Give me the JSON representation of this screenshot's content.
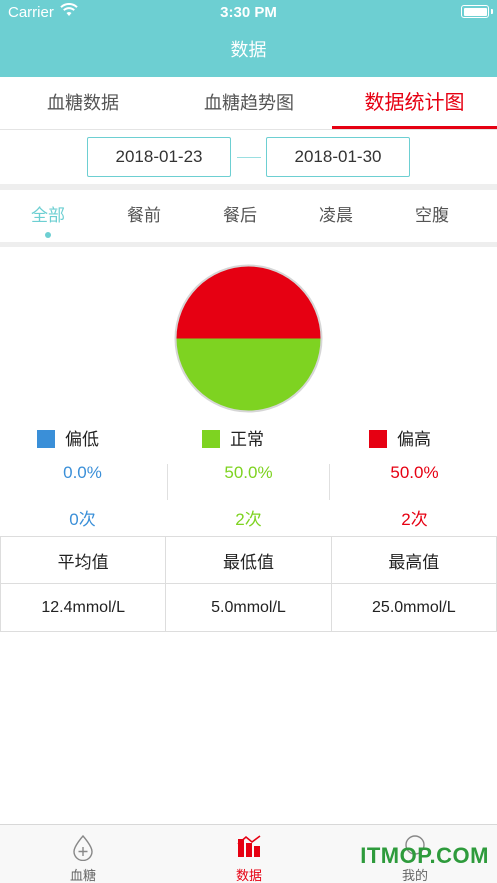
{
  "status_bar": {
    "carrier": "Carrier",
    "time": "3:30 PM"
  },
  "nav": {
    "title": "数据"
  },
  "tabs": [
    {
      "label": "血糖数据"
    },
    {
      "label": "血糖趋势图"
    },
    {
      "label": "数据统计图",
      "active": true
    }
  ],
  "date_range": {
    "start": "2018-01-23",
    "end": "2018-01-30"
  },
  "filters": [
    {
      "label": "全部",
      "active": true
    },
    {
      "label": "餐前"
    },
    {
      "label": "餐后"
    },
    {
      "label": "凌晨"
    },
    {
      "label": "空腹"
    }
  ],
  "chart_data": {
    "type": "pie",
    "categories": [
      "偏低",
      "正常",
      "偏高"
    ],
    "values": [
      0.0,
      50.0,
      50.0
    ],
    "counts": [
      0,
      2,
      2
    ],
    "colors": [
      "#3a8fd8",
      "#7ed321",
      "#e60012"
    ]
  },
  "legend": [
    {
      "label": "偏低",
      "percent": "0.0%",
      "count": "0次",
      "color": "#3a8fd8"
    },
    {
      "label": "正常",
      "percent": "50.0%",
      "count": "2次",
      "color": "#7ed321"
    },
    {
      "label": "偏高",
      "percent": "50.0%",
      "count": "2次",
      "color": "#e60012"
    }
  ],
  "stats": {
    "headers": [
      "平均值",
      "最低值",
      "最高值"
    ],
    "values": [
      "12.4mmol/L",
      "5.0mmol/L",
      "25.0mmol/L"
    ]
  },
  "tab_bar": [
    {
      "label": "血糖",
      "icon": "drop-plus-icon"
    },
    {
      "label": "数据",
      "icon": "chart-icon",
      "active": true
    },
    {
      "label": "我的",
      "icon": "user-icon"
    }
  ],
  "watermark": "ITMOP.COM",
  "theme": {
    "accent": "#6dcfd2",
    "active_red": "#e60012"
  }
}
